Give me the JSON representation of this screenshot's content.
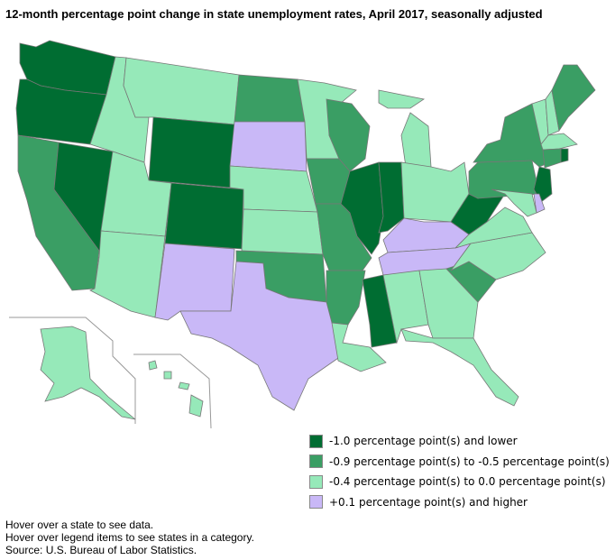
{
  "title": "12-month percentage point change in state unemployment rates, April 2017, seasonally adjusted",
  "colors": {
    "cat1": "#006d32",
    "cat2": "#3a9e64",
    "cat3": "#96e9b9",
    "cat4": "#c9b8f7"
  },
  "legend": [
    {
      "key": "cat1",
      "label": "-1.0 percentage point(s) and lower"
    },
    {
      "key": "cat2",
      "label": "-0.9 percentage point(s) to -0.5 percentage point(s)"
    },
    {
      "key": "cat3",
      "label": "-0.4 percentage point(s) to 0.0 percentage point(s)"
    },
    {
      "key": "cat4",
      "label": "+0.1 percentage point(s) and higher"
    }
  ],
  "states": {
    "WA": "cat1",
    "OR": "cat1",
    "NV": "cat1",
    "WY": "cat1",
    "CO": "cat1",
    "IL": "cat1",
    "IN": "cat1",
    "MS": "cat1",
    "WV": "cat1",
    "NJ": "cat1",
    "RI": "cat1",
    "CA": "cat2",
    "ND": "cat2",
    "WI": "cat2",
    "IA": "cat2",
    "MO": "cat2",
    "AR": "cat2",
    "OK": "cat2",
    "SC": "cat2",
    "PA": "cat2",
    "NY": "cat2",
    "CT": "cat2",
    "ME": "cat2",
    "ID": "cat3",
    "MT": "cat3",
    "UT": "cat3",
    "AZ": "cat3",
    "NE": "cat3",
    "KS": "cat3",
    "MN": "cat3",
    "MI": "cat3",
    "OH": "cat3",
    "VA": "cat3",
    "NC": "cat3",
    "GA": "cat3",
    "AL": "cat3",
    "FL": "cat3",
    "LA": "cat3",
    "VT": "cat3",
    "NH": "cat3",
    "MA": "cat3",
    "MD": "cat3",
    "AK": "cat3",
    "HI": "cat3",
    "SD": "cat4",
    "NM": "cat4",
    "TX": "cat4",
    "KY": "cat4",
    "TN": "cat4",
    "DE": "cat4"
  },
  "notes": [
    "Hover over a state to see data.",
    "Hover over legend items to see states in a category.",
    "Source: U.S. Bureau of Labor Statistics."
  ]
}
